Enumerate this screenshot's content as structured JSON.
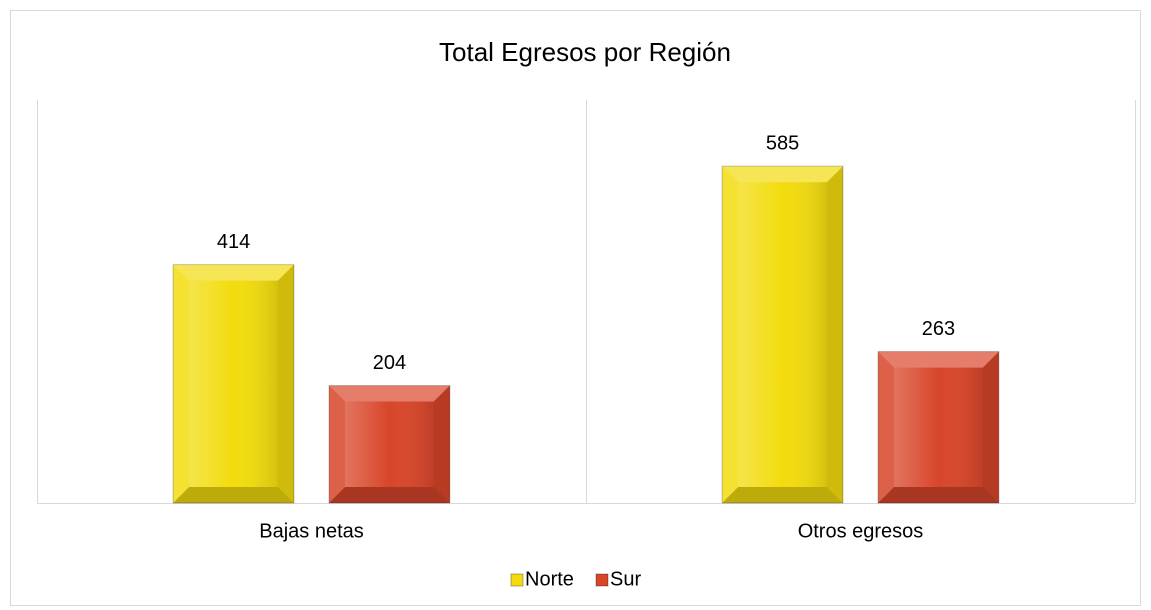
{
  "chart_data": {
    "type": "bar",
    "title": "Total Egresos  por Región",
    "categories": [
      "Bajas netas",
      "Otros egresos"
    ],
    "series": [
      {
        "name": "Norte",
        "color": "#f2dc0e",
        "values": [
          414,
          585
        ]
      },
      {
        "name": "Sur",
        "color": "#d8462a",
        "values": [
          204,
          263
        ]
      }
    ],
    "ylim": [
      0,
      700
    ],
    "legend": "bottom"
  }
}
